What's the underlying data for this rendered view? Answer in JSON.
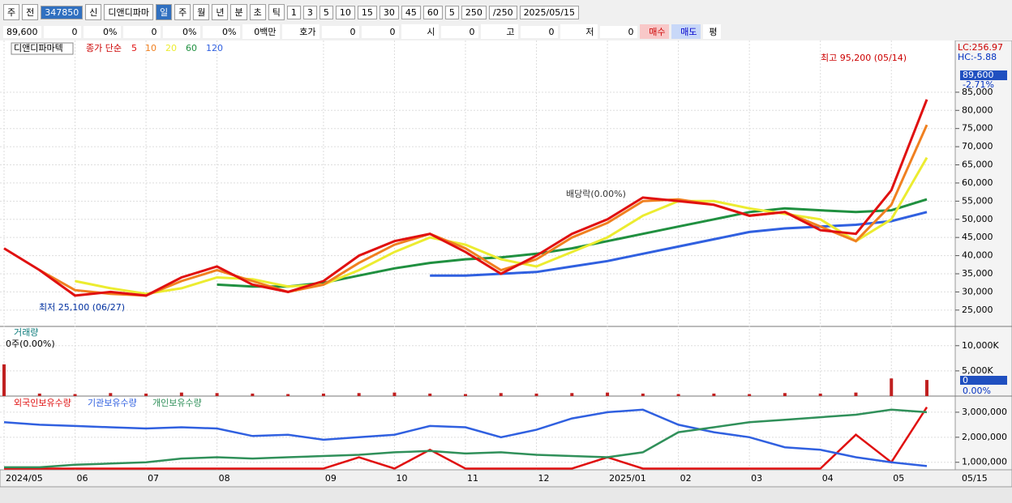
{
  "toolbar": {
    "row1": [
      "주",
      "전",
      "347850",
      "신",
      "디앤디파마",
      "일",
      "주",
      "월",
      "년",
      "분",
      "초",
      "틱",
      "1",
      "3",
      "5",
      "10",
      "15",
      "30",
      "45",
      "60",
      "5",
      "250",
      "/250",
      "2025/05/15"
    ],
    "row2": [
      "89,600",
      "0",
      "0%",
      "0",
      "0%",
      "0%",
      "0백만",
      "호가",
      "0",
      "0",
      "시",
      "0",
      "고",
      "0",
      "저",
      "0",
      "매수",
      "매도",
      "평"
    ]
  },
  "chart_data": [
    {
      "type": "line",
      "title": "디앤디파마텍",
      "legend_label": "종가 단순",
      "annotations": {
        "high": "최고 95,200 (05/14)",
        "low": "최저 25,100 (06/27)",
        "dividend": "배당락(0.00%)",
        "lc": "LC:256.97",
        "hc": "HC:-5.88",
        "last_price": "89,600",
        "change": "-2.71%"
      },
      "ylim": [
        20500,
        98800
      ],
      "grid": true,
      "yticks": [
        {
          "value": 25000,
          "label": "25,000"
        },
        {
          "value": 30000,
          "label": "30,000"
        },
        {
          "value": 35000,
          "label": "35,000"
        },
        {
          "value": 40000,
          "label": "40,000"
        },
        {
          "value": 45000,
          "label": "45,000"
        },
        {
          "value": 50000,
          "label": "50,000"
        },
        {
          "value": 55000,
          "label": "55,000"
        },
        {
          "value": 60000,
          "label": "60,000"
        },
        {
          "value": 65000,
          "label": "65,000"
        },
        {
          "value": 70000,
          "label": "70,000"
        },
        {
          "value": 75000,
          "label": "75,000"
        },
        {
          "value": 80000,
          "label": "80,000"
        },
        {
          "value": 85000,
          "label": "85,000"
        }
      ],
      "series": [
        {
          "name": "120",
          "color": "#3060e0",
          "values": [
            null,
            null,
            null,
            null,
            null,
            null,
            null,
            null,
            null,
            null,
            null,
            null,
            34500,
            34500,
            35000,
            35500,
            37000,
            38500,
            40500,
            42500,
            44500,
            46500,
            47500,
            48000,
            48500,
            49500,
            52000
          ]
        },
        {
          "name": "60",
          "color": "#209040",
          "values": [
            null,
            null,
            null,
            null,
            null,
            null,
            32000,
            31500,
            31500,
            32500,
            34500,
            36500,
            38000,
            39000,
            39500,
            40500,
            42000,
            44000,
            46000,
            48000,
            50000,
            52000,
            53000,
            52500,
            52000,
            52500,
            55500
          ]
        },
        {
          "name": "20",
          "color": "#ecec30",
          "values": [
            null,
            null,
            33000,
            31000,
            29500,
            31000,
            34000,
            33500,
            31500,
            32000,
            36000,
            41000,
            45000,
            43000,
            39000,
            37000,
            41000,
            45000,
            51000,
            55000,
            55000,
            53000,
            51500,
            50000,
            44000,
            50000,
            67000
          ]
        },
        {
          "name": "10",
          "color": "#f08020",
          "values": [
            null,
            36000,
            30500,
            29500,
            29000,
            33000,
            36000,
            33000,
            30000,
            32000,
            38000,
            43000,
            46000,
            42000,
            36000,
            39000,
            45000,
            49000,
            55000,
            55500,
            54000,
            51000,
            52000,
            48000,
            44000,
            54000,
            76000
          ]
        },
        {
          "name": "5",
          "color": "#e01010",
          "values": [
            42000,
            36000,
            29000,
            30000,
            29000,
            34000,
            37000,
            32000,
            30000,
            33000,
            40000,
            44000,
            46000,
            41000,
            35000,
            40000,
            46000,
            50000,
            56000,
            55000,
            54000,
            51000,
            52000,
            47000,
            46000,
            58000,
            83000
          ]
        }
      ]
    },
    {
      "type": "bar",
      "title": "거래량",
      "info": "0주(0.00%)",
      "last_value": "0",
      "last_pct": "0.00%",
      "ylim": [
        0,
        13500
      ],
      "grid": true,
      "yticks": [
        {
          "value": 5000,
          "label": "5,000K"
        },
        {
          "value": 10000,
          "label": "10,000K"
        }
      ],
      "color": "#c02020",
      "values": [
        6300,
        500,
        400,
        600,
        500,
        700,
        600,
        500,
        400,
        500,
        600,
        700,
        500,
        400,
        600,
        500,
        600,
        700,
        500,
        400,
        500,
        400,
        600,
        500,
        700,
        3500,
        3200
      ]
    },
    {
      "type": "line",
      "ylim": [
        700000,
        3580000
      ],
      "grid": true,
      "x_end_label": "05/15",
      "categories": [
        "2024/05",
        null,
        "06",
        null,
        "07",
        null,
        "08",
        null,
        null,
        "09",
        null,
        "10",
        null,
        "11",
        null,
        "12",
        null,
        "2025/01",
        null,
        "02",
        null,
        "03",
        null,
        "04",
        null,
        "05",
        null
      ],
      "yticks": [
        {
          "value": 1000000,
          "label": "1,000,000"
        },
        {
          "value": 2000000,
          "label": "2,000,000"
        },
        {
          "value": 3000000,
          "label": "3,000,000"
        }
      ],
      "series": [
        {
          "name": "외국인보유수량",
          "color": "#e01010",
          "values": [
            750000,
            750000,
            750000,
            750000,
            750000,
            750000,
            750000,
            750000,
            750000,
            750000,
            1200000,
            750000,
            1500000,
            750000,
            750000,
            750000,
            750000,
            1200000,
            750000,
            750000,
            750000,
            750000,
            750000,
            750000,
            2100000,
            1000000,
            3200000
          ]
        },
        {
          "name": "기관보유수량",
          "color": "#3060e0",
          "values": [
            2600000,
            2500000,
            2450000,
            2400000,
            2350000,
            2400000,
            2350000,
            2050000,
            2100000,
            1900000,
            2000000,
            2100000,
            2450000,
            2400000,
            2000000,
            2300000,
            2750000,
            3000000,
            3100000,
            2500000,
            2200000,
            2000000,
            1600000,
            1500000,
            1200000,
            1000000,
            850000
          ]
        },
        {
          "name": "개인보유수량",
          "color": "#30905a",
          "values": [
            800000,
            800000,
            900000,
            950000,
            1000000,
            1150000,
            1200000,
            1150000,
            1200000,
            1250000,
            1300000,
            1400000,
            1450000,
            1350000,
            1400000,
            1300000,
            1250000,
            1200000,
            1400000,
            2200000,
            2400000,
            2600000,
            2700000,
            2800000,
            2900000,
            3100000,
            3000000
          ]
        }
      ]
    }
  ]
}
